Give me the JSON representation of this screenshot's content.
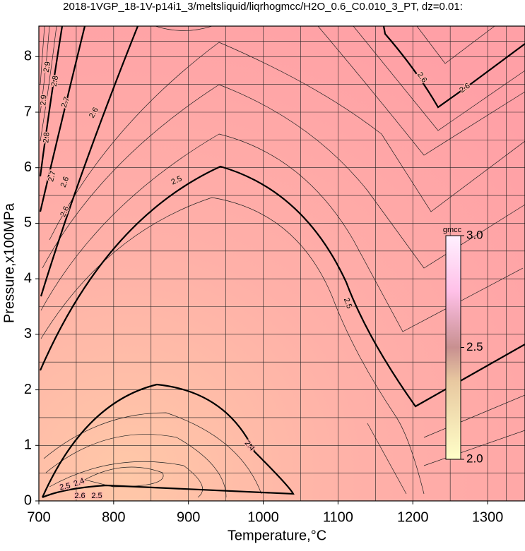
{
  "chart_data": {
    "type": "contour",
    "title": "2018-1VGP_18-1V-p14i1_3/meltsliquid/liqrhogmcc/H2O_0.6_C0.010_3_PT, dz=0.01:",
    "x_label": "Temperature,°C",
    "y_label": "Pressure,x100MPa",
    "xlim": [
      700,
      1350
    ],
    "ylim": [
      0,
      8.55
    ],
    "xticks": [
      700,
      800,
      900,
      1000,
      1100,
      1200,
      1300
    ],
    "yticks": [
      0,
      1,
      2,
      3,
      4,
      5,
      6,
      7,
      8
    ],
    "grid": true,
    "colorbar": {
      "label": "gmcc",
      "zlim": [
        2.0,
        3.0
      ],
      "ticks": [
        {
          "value": 2.0,
          "label": "2.0"
        },
        {
          "value": 2.5,
          "label": "2.5"
        },
        {
          "value": 3.0,
          "label": "3.0"
        }
      ]
    },
    "contour_labels": [
      2.5,
      2.5,
      2.4,
      2.6,
      2.6,
      2.6,
      2.6,
      2.7,
      2.8,
      2.9,
      2.9,
      2.8,
      2.7,
      2.6,
      2.4,
      2.5,
      2.6,
      2.5
    ]
  }
}
